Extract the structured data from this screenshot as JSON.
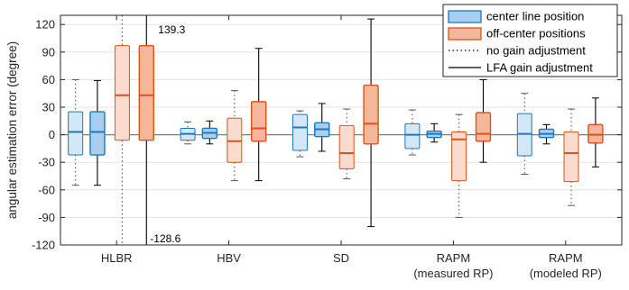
{
  "chart_data": {
    "type": "boxplot",
    "ylabel": "angular estimation error (degree)",
    "ylim": [
      -120,
      130
    ],
    "yticks": [
      -120,
      -90,
      -60,
      -30,
      0,
      30,
      60,
      90,
      120
    ],
    "grid": "horizontal",
    "legend_position": "top-right",
    "categories": [
      {
        "label": "HLBR",
        "sublabel": ""
      },
      {
        "label": "HBV",
        "sublabel": ""
      },
      {
        "label": "SD",
        "sublabel": ""
      },
      {
        "label": "RAPM",
        "sublabel": "(measured RP)"
      },
      {
        "label": "RAPM",
        "sublabel": "(modeled RP)"
      }
    ],
    "legend": [
      {
        "label": "center line position",
        "kind": "box",
        "fill": "#a9cfee",
        "stroke": "#1f77bd"
      },
      {
        "label": "off-center positions",
        "kind": "box",
        "fill": "#f4b79b",
        "stroke": "#d9531e"
      },
      {
        "label": "no gain adjustment",
        "kind": "dotted"
      },
      {
        "label": "LFA gain adjustment",
        "kind": "solid"
      }
    ],
    "colors": {
      "center_fill": "#a9cfee",
      "center_stroke": "#1f77bd",
      "offcenter_fill": "#f4b79b",
      "offcenter_stroke": "#d9531e",
      "center_fill_light": "#d4e7f6",
      "offcenter_fill_light": "#fadbcd",
      "zero_line": "#7f7f7f"
    },
    "clip_labels": {
      "top": "139.3",
      "bottom": "-128.6"
    },
    "boxes": [
      {
        "category": 0,
        "position": "center",
        "gain": "none",
        "min": -55,
        "q1": -22,
        "median": 3,
        "q3": 25,
        "max": 60
      },
      {
        "category": 0,
        "position": "center",
        "gain": "lfa",
        "min": -55,
        "q1": -22,
        "median": 3,
        "q3": 25,
        "max": 59
      },
      {
        "category": 0,
        "position": "offcenter",
        "gain": "none",
        "min": -120,
        "q1": -6,
        "median": 43,
        "q3": 97,
        "max": 130
      },
      {
        "category": 0,
        "position": "offcenter",
        "gain": "lfa",
        "min": -120,
        "q1": -6,
        "median": 43,
        "q3": 97,
        "max": 130
      },
      {
        "category": 1,
        "position": "center",
        "gain": "none",
        "min": -10,
        "q1": -6,
        "median": 1,
        "q3": 7,
        "max": 14
      },
      {
        "category": 1,
        "position": "center",
        "gain": "lfa",
        "min": -10,
        "q1": -4,
        "median": 2,
        "q3": 7,
        "max": 15
      },
      {
        "category": 1,
        "position": "offcenter",
        "gain": "none",
        "min": -50,
        "q1": -30,
        "median": -7,
        "q3": 18,
        "max": 48
      },
      {
        "category": 1,
        "position": "offcenter",
        "gain": "lfa",
        "min": -50,
        "q1": -7,
        "median": 7,
        "q3": 36,
        "max": 94
      },
      {
        "category": 2,
        "position": "center",
        "gain": "none",
        "min": -24,
        "q1": -17,
        "median": 8,
        "q3": 22,
        "max": 26
      },
      {
        "category": 2,
        "position": "center",
        "gain": "lfa",
        "min": -18,
        "q1": -2,
        "median": 6,
        "q3": 13,
        "max": 34
      },
      {
        "category": 2,
        "position": "offcenter",
        "gain": "none",
        "min": -48,
        "q1": -37,
        "median": -20,
        "q3": 10,
        "max": 28
      },
      {
        "category": 2,
        "position": "offcenter",
        "gain": "lfa",
        "min": -100,
        "q1": -10,
        "median": 12,
        "q3": 54,
        "max": 126
      },
      {
        "category": 3,
        "position": "center",
        "gain": "none",
        "min": -22,
        "q1": -15,
        "median": 0,
        "q3": 12,
        "max": 27
      },
      {
        "category": 3,
        "position": "center",
        "gain": "lfa",
        "min": -8,
        "q1": -3,
        "median": 1,
        "q3": 4,
        "max": 12
      },
      {
        "category": 3,
        "position": "offcenter",
        "gain": "none",
        "min": -90,
        "q1": -50,
        "median": -5,
        "q3": 3,
        "max": 22
      },
      {
        "category": 3,
        "position": "offcenter",
        "gain": "lfa",
        "min": -30,
        "q1": -7,
        "median": 1,
        "q3": 24,
        "max": 60
      },
      {
        "category": 4,
        "position": "center",
        "gain": "none",
        "min": -43,
        "q1": -23,
        "median": 1,
        "q3": 23,
        "max": 45
      },
      {
        "category": 4,
        "position": "center",
        "gain": "lfa",
        "min": -10,
        "q1": -3,
        "median": 1,
        "q3": 6,
        "max": 11
      },
      {
        "category": 4,
        "position": "offcenter",
        "gain": "none",
        "min": -77,
        "q1": -51,
        "median": -20,
        "q3": 3,
        "max": 28
      },
      {
        "category": 4,
        "position": "offcenter",
        "gain": "lfa",
        "min": -35,
        "q1": -9,
        "median": 0,
        "q3": 11,
        "max": 40
      }
    ]
  }
}
